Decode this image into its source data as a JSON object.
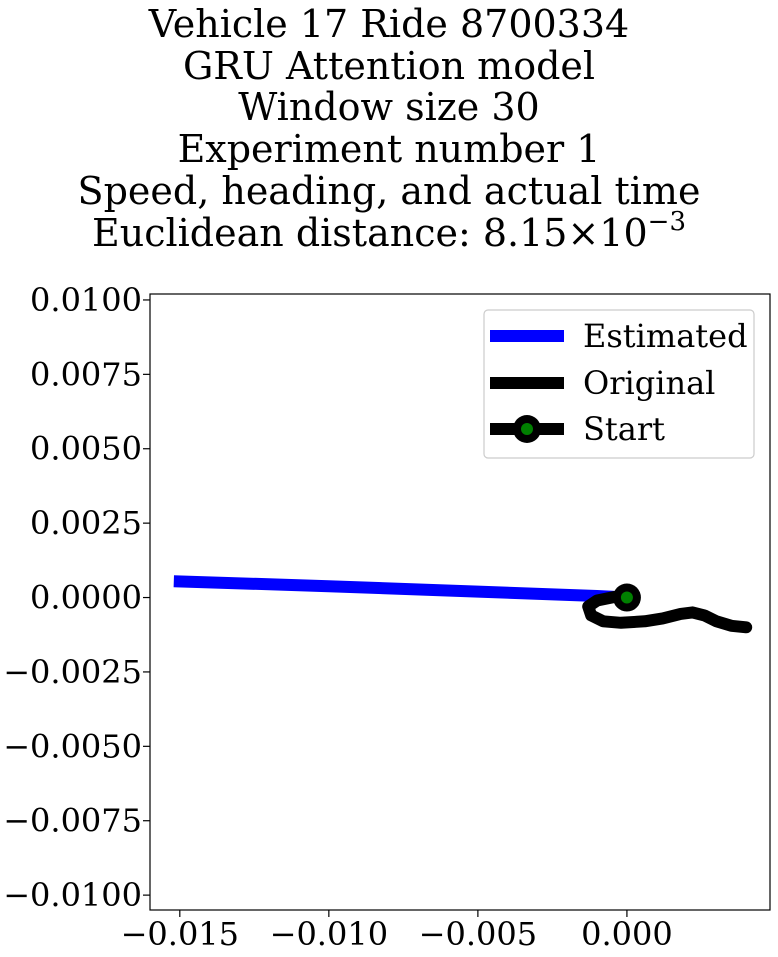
{
  "chart_data": {
    "type": "line",
    "title_lines": [
      "Vehicle 17 Ride 8700334",
      "GRU Attention model",
      "Window size 30",
      "Experiment number 1",
      "Speed, heading, and actual time"
    ],
    "title_distance_prefix": "Euclidean distance: 8.15×10",
    "title_distance_exponent": "−3",
    "xlim": [
      -0.016,
      0.0048
    ],
    "ylim": [
      -0.0105,
      0.0102
    ],
    "xticks": [
      -0.015,
      -0.01,
      -0.005,
      0.0
    ],
    "xtick_labels": [
      "−0.015",
      "−0.010",
      "−0.005",
      "0.000"
    ],
    "yticks": [
      0.01,
      0.0075,
      0.005,
      0.0025,
      0.0,
      -0.0025,
      -0.005,
      -0.0075,
      -0.01
    ],
    "ytick_labels": [
      "0.0100",
      "0.0075",
      "0.0050",
      "0.0025",
      "0.0000",
      "−0.0025",
      "−0.0050",
      "−0.0075",
      "−0.0100"
    ],
    "grid": false,
    "legend_position": "top-right",
    "series": [
      {
        "name": "Estimated",
        "color": "#0000ff",
        "x": [
          -0.0152,
          -0.01,
          -0.005,
          -0.001,
          0.0
        ],
        "y": [
          0.00055,
          0.00038,
          0.0002,
          5e-05,
          0.0
        ]
      },
      {
        "name": "Original",
        "color": "#000000",
        "x": [
          0.0,
          -0.0004,
          -0.001,
          -0.0013,
          -0.0012,
          -0.0008,
          -0.0002,
          0.0006,
          0.0012,
          0.0018,
          0.0022,
          0.0026,
          0.003,
          0.0035,
          0.004
        ],
        "y": [
          0.0,
          2e-05,
          -0.0001,
          -0.0003,
          -0.0006,
          -0.0008,
          -0.00085,
          -0.0008,
          -0.0007,
          -0.00055,
          -0.0005,
          -0.0006,
          -0.0008,
          -0.00095,
          -0.001
        ]
      },
      {
        "name": "Start",
        "color": "#000000",
        "marker_color": "#008000",
        "x": [
          0.0
        ],
        "y": [
          0.0
        ]
      }
    ]
  }
}
